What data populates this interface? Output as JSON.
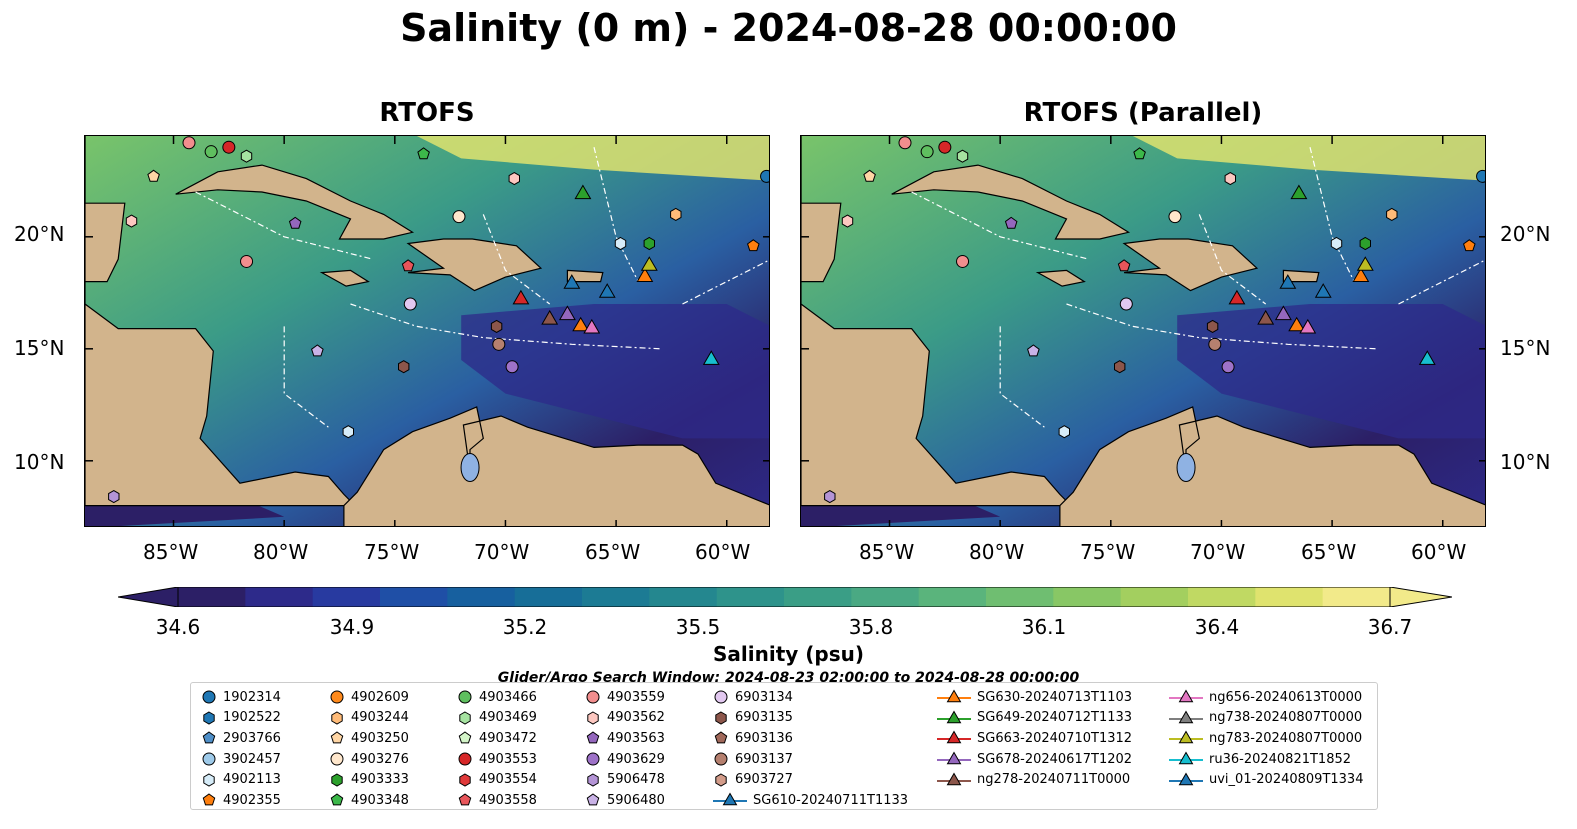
{
  "title": "Salinity (0 m) - 2024-08-28 00:00:00",
  "panels": [
    {
      "title": "RTOFS"
    },
    {
      "title": "RTOFS (Parallel)"
    }
  ],
  "lat_labels": [
    "20°N",
    "15°N",
    "10°N"
  ],
  "lon_labels": [
    "85°W",
    "80°W",
    "75°W",
    "70°W",
    "65°W",
    "60°W"
  ],
  "colorbar": {
    "label": "Salinity (psu)",
    "ticks": [
      "34.6",
      "34.9",
      "35.2",
      "35.5",
      "35.8",
      "36.1",
      "36.4",
      "36.7"
    ],
    "colors": [
      "#2c1f66",
      "#2d2a8a",
      "#283aa0",
      "#1f4fa6",
      "#17609f",
      "#176e98",
      "#1c7b94",
      "#24878f",
      "#2e938b",
      "#3a9e86",
      "#4aa983",
      "#5ab47c",
      "#6fbe71",
      "#88c765",
      "#a3cf5f",
      "#c0d963",
      "#dfe36e",
      "#f2ea8a"
    ]
  },
  "search_window": "Glider/Argo Search Window: 2024-08-23 02:00:00 to 2024-08-28 00:00:00",
  "legend": {
    "columns": [
      [
        {
          "label": "1902314",
          "marker": "circle",
          "color": "#1f77b4"
        },
        {
          "label": "1902522",
          "marker": "hexagon",
          "color": "#1f77b4"
        },
        {
          "label": "2903766",
          "marker": "pentagon",
          "color": "#4f8fc8"
        },
        {
          "label": "3902457",
          "marker": "circle",
          "color": "#9ecae9"
        },
        {
          "label": "4902113",
          "marker": "hexagon",
          "color": "#d6ecf8"
        },
        {
          "label": "4902355",
          "marker": "pentagon",
          "color": "#ff7f0e"
        }
      ],
      [
        {
          "label": "4902609",
          "marker": "circle",
          "color": "#ff8a1c"
        },
        {
          "label": "4903244",
          "marker": "hexagon",
          "color": "#ffbb78"
        },
        {
          "label": "4903250",
          "marker": "pentagon",
          "color": "#ffd6a5"
        },
        {
          "label": "4903276",
          "marker": "circle",
          "color": "#ffe7cc"
        },
        {
          "label": "4903333",
          "marker": "hexagon",
          "color": "#2ca02c"
        },
        {
          "label": "4903348",
          "marker": "pentagon",
          "color": "#3cb84a"
        }
      ],
      [
        {
          "label": "4903466",
          "marker": "circle",
          "color": "#5fbf5f"
        },
        {
          "label": "4903469",
          "marker": "hexagon",
          "color": "#a6e3a1"
        },
        {
          "label": "4903472",
          "marker": "pentagon",
          "color": "#d4f5c9"
        },
        {
          "label": "4903553",
          "marker": "circle",
          "color": "#d62728"
        },
        {
          "label": "4903554",
          "marker": "hexagon",
          "color": "#e0393a"
        },
        {
          "label": "4903558",
          "marker": "pentagon",
          "color": "#e8555a"
        }
      ],
      [
        {
          "label": "4903559",
          "marker": "circle",
          "color": "#f28e8e"
        },
        {
          "label": "4903562",
          "marker": "hexagon",
          "color": "#fcc7c0"
        },
        {
          "label": "4903563",
          "marker": "pentagon",
          "color": "#9467bd"
        },
        {
          "label": "4903629",
          "marker": "circle",
          "color": "#9e72c8"
        },
        {
          "label": "5906478",
          "marker": "hexagon",
          "color": "#b494d6"
        },
        {
          "label": "5906480",
          "marker": "pentagon",
          "color": "#c9b2e6"
        }
      ],
      [
        {
          "label": "6903134",
          "marker": "circle",
          "color": "#e2c8f0"
        },
        {
          "label": "6903135",
          "marker": "hexagon",
          "color": "#8c564b"
        },
        {
          "label": "6903136",
          "marker": "pentagon",
          "color": "#a0685a"
        },
        {
          "label": "6903137",
          "marker": "circle",
          "color": "#b5806f"
        },
        {
          "label": "6903727",
          "marker": "hexagon",
          "color": "#d39c8a"
        },
        {
          "label": "SG610-20240711T1133",
          "marker": "triangle-line",
          "color": "#1f77b4"
        }
      ],
      [
        {
          "label": "SG630-20240713T1103",
          "marker": "triangle-line",
          "color": "#ff7f0e"
        },
        {
          "label": "SG649-20240712T1133",
          "marker": "triangle-line",
          "color": "#2ca02c"
        },
        {
          "label": "SG663-20240710T1312",
          "marker": "triangle-line",
          "color": "#d62728"
        },
        {
          "label": "SG678-20240617T1202",
          "marker": "triangle-line",
          "color": "#9467bd"
        },
        {
          "label": "ng278-20240711T0000",
          "marker": "triangle-line",
          "color": "#8c564b"
        }
      ],
      [
        {
          "label": "ng656-20240613T0000",
          "marker": "triangle-line",
          "color": "#e377c2"
        },
        {
          "label": "ng738-20240807T0000",
          "marker": "triangle-line",
          "color": "#7f7f7f"
        },
        {
          "label": "ng783-20240807T0000",
          "marker": "triangle-line",
          "color": "#bcbd22"
        },
        {
          "label": "ru36-20240821T1852",
          "marker": "triangle-line",
          "color": "#17becf"
        },
        {
          "label": "uvi_01-20240809T1334",
          "marker": "triangle-line",
          "color": "#1f77b4"
        }
      ]
    ]
  },
  "map_extent": {
    "lon_min": -89,
    "lon_max": -58,
    "lat_min": 7,
    "lat_max": 24.5
  },
  "floats": [
    {
      "lon": -84.3,
      "lat": 24.2,
      "marker": "circle",
      "color": "#f28e8e"
    },
    {
      "lon": -82.5,
      "lat": 24.0,
      "marker": "circle",
      "color": "#d62728"
    },
    {
      "lon": -83.3,
      "lat": 23.8,
      "marker": "circle",
      "color": "#5fbf5f"
    },
    {
      "lon": -81.7,
      "lat": 23.6,
      "marker": "hexagon",
      "color": "#a6e3a1"
    },
    {
      "lon": -85.9,
      "lat": 22.7,
      "marker": "pentagon",
      "color": "#ffd6a5"
    },
    {
      "lon": -73.7,
      "lat": 23.7,
      "marker": "pentagon",
      "color": "#3cb84a"
    },
    {
      "lon": -69.6,
      "lat": 22.6,
      "marker": "hexagon",
      "color": "#fcc7c0"
    },
    {
      "lon": -58.2,
      "lat": 22.7,
      "marker": "circle",
      "color": "#1f77b4"
    },
    {
      "lon": -72.1,
      "lat": 20.9,
      "marker": "circle",
      "color": "#ffe7cc"
    },
    {
      "lon": -86.9,
      "lat": 20.7,
      "marker": "hexagon",
      "color": "#fcc7c0"
    },
    {
      "lon": -79.5,
      "lat": 20.6,
      "marker": "pentagon",
      "color": "#9467bd"
    },
    {
      "lon": -62.3,
      "lat": 21.0,
      "marker": "hexagon",
      "color": "#ffbb78"
    },
    {
      "lon": -64.8,
      "lat": 19.7,
      "marker": "hexagon",
      "color": "#d6ecf8"
    },
    {
      "lon": -63.5,
      "lat": 19.7,
      "marker": "hexagon",
      "color": "#2ca02c"
    },
    {
      "lon": -58.8,
      "lat": 19.6,
      "marker": "pentagon",
      "color": "#ff7f0e"
    },
    {
      "lon": -81.7,
      "lat": 18.9,
      "marker": "circle",
      "color": "#f28e8e"
    },
    {
      "lon": -74.4,
      "lat": 18.7,
      "marker": "pentagon",
      "color": "#e8555a"
    },
    {
      "lon": -74.3,
      "lat": 17.0,
      "marker": "circle",
      "color": "#e2c8f0"
    },
    {
      "lon": -70.4,
      "lat": 16.0,
      "marker": "hexagon",
      "color": "#8c564b"
    },
    {
      "lon": -70.3,
      "lat": 15.2,
      "marker": "circle",
      "color": "#b5806f"
    },
    {
      "lon": -78.5,
      "lat": 14.9,
      "marker": "pentagon",
      "color": "#c9b2e6"
    },
    {
      "lon": -74.6,
      "lat": 14.2,
      "marker": "hexagon",
      "color": "#8c564b"
    },
    {
      "lon": -69.7,
      "lat": 14.2,
      "marker": "circle",
      "color": "#9e72c8"
    },
    {
      "lon": -77.1,
      "lat": 11.3,
      "marker": "hexagon",
      "color": "#d6ecf8"
    },
    {
      "lon": -87.7,
      "lat": 8.4,
      "marker": "hexagon",
      "color": "#b494d6"
    }
  ],
  "gliders": [
    {
      "lon": -66.5,
      "lat": 21.9,
      "color": "#2ca02c"
    },
    {
      "lon": -69.3,
      "lat": 17.2,
      "color": "#d62728"
    },
    {
      "lon": -67.0,
      "lat": 17.9,
      "color": "#1f77b4"
    },
    {
      "lon": -65.4,
      "lat": 17.5,
      "color": "#1f77b4"
    },
    {
      "lon": -63.7,
      "lat": 18.2,
      "color": "#ff7f0e"
    },
    {
      "lon": -63.5,
      "lat": 18.7,
      "color": "#bcbd22"
    },
    {
      "lon": -68.0,
      "lat": 16.3,
      "color": "#8c564b"
    },
    {
      "lon": -67.2,
      "lat": 16.5,
      "color": "#9467bd"
    },
    {
      "lon": -66.6,
      "lat": 16.0,
      "color": "#ff7f0e"
    },
    {
      "lon": -66.1,
      "lat": 15.9,
      "color": "#e377c2"
    },
    {
      "lon": -60.7,
      "lat": 14.5,
      "color": "#17becf"
    }
  ]
}
